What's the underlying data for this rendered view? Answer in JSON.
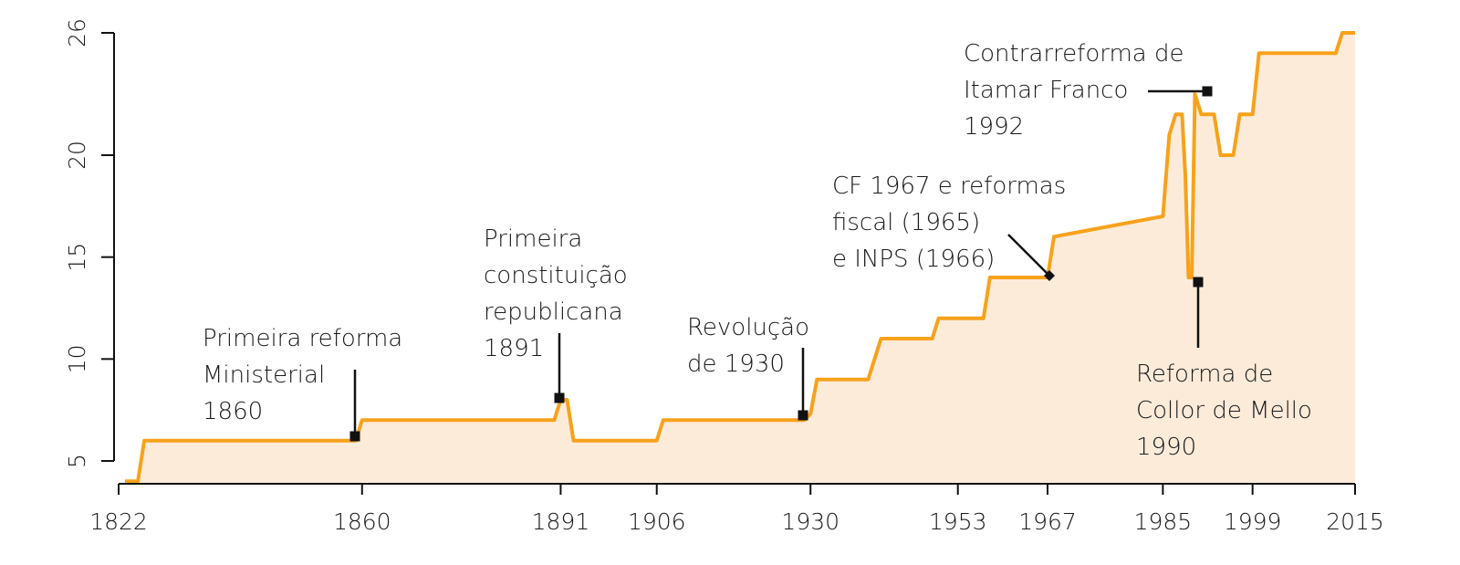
{
  "chart_data": {
    "type": "area",
    "title": "",
    "xlabel": "",
    "ylabel": "",
    "xlim": [
      1822,
      2015
    ],
    "ylim": [
      4,
      26
    ],
    "x_ticks": [
      1822,
      1860,
      1891,
      1906,
      1930,
      1953,
      1967,
      1985,
      1999,
      2015
    ],
    "y_ticks": [
      5,
      10,
      15,
      20,
      26
    ],
    "colors": {
      "line": "#F7A21B",
      "fill": "#FDEBDA",
      "marker": "#111111"
    },
    "series": [
      {
        "x": [
          1823,
          1825,
          1826,
          1859,
          1860,
          1890,
          1891,
          1892,
          1893,
          1906,
          1907,
          1929,
          1930,
          1931,
          1939,
          1941,
          1949,
          1950,
          1957,
          1958,
          1966,
          1967,
          1968,
          1985,
          1986,
          1987,
          1988,
          1988.5,
          1989,
          1989.5,
          1990,
          1991,
          1993,
          1994,
          1996,
          1997,
          1998,
          1999,
          2000,
          2001,
          2012,
          2013,
          2015
        ],
        "y": [
          4,
          4,
          6,
          6,
          7,
          7,
          8,
          8,
          6,
          6,
          7,
          7,
          7.3,
          9,
          9,
          11,
          11,
          12,
          12,
          14,
          14,
          14,
          16,
          17,
          21,
          22,
          22,
          19,
          14,
          14,
          23,
          22,
          22,
          20,
          20,
          22,
          22,
          22,
          25,
          25,
          25,
          26,
          26
        ]
      }
    ],
    "annotations": [
      {
        "lines": [
          "Primeira reforma",
          "Ministerial",
          "1860"
        ],
        "marker_x": 1859,
        "marker_y": 6.2,
        "marker": "square"
      },
      {
        "lines": [
          "Primeira",
          "constituição",
          "republicana",
          "1891"
        ],
        "marker_x": 1891,
        "marker_y": 8.1,
        "marker": "square"
      },
      {
        "lines": [
          "Revolução",
          "de 1930"
        ],
        "marker_x": 1929.5,
        "marker_y": 7.3,
        "marker": "square"
      },
      {
        "lines": [
          "CF 1967 e reformas",
          "fiscal (1965)",
          "e INPS (1966)"
        ],
        "marker_x": 1966,
        "marker_y": 14.1,
        "marker": "diamond"
      },
      {
        "lines": [
          "Contrarreforma de",
          "Itamar Franco",
          "1992"
        ],
        "marker_x": 1990.5,
        "marker_y": 23.1,
        "marker": "square"
      },
      {
        "lines": [
          "Reforma de",
          "Collor de Mello",
          "1990"
        ],
        "marker_x": 1989,
        "marker_y": 13.8,
        "marker": "square"
      }
    ]
  }
}
